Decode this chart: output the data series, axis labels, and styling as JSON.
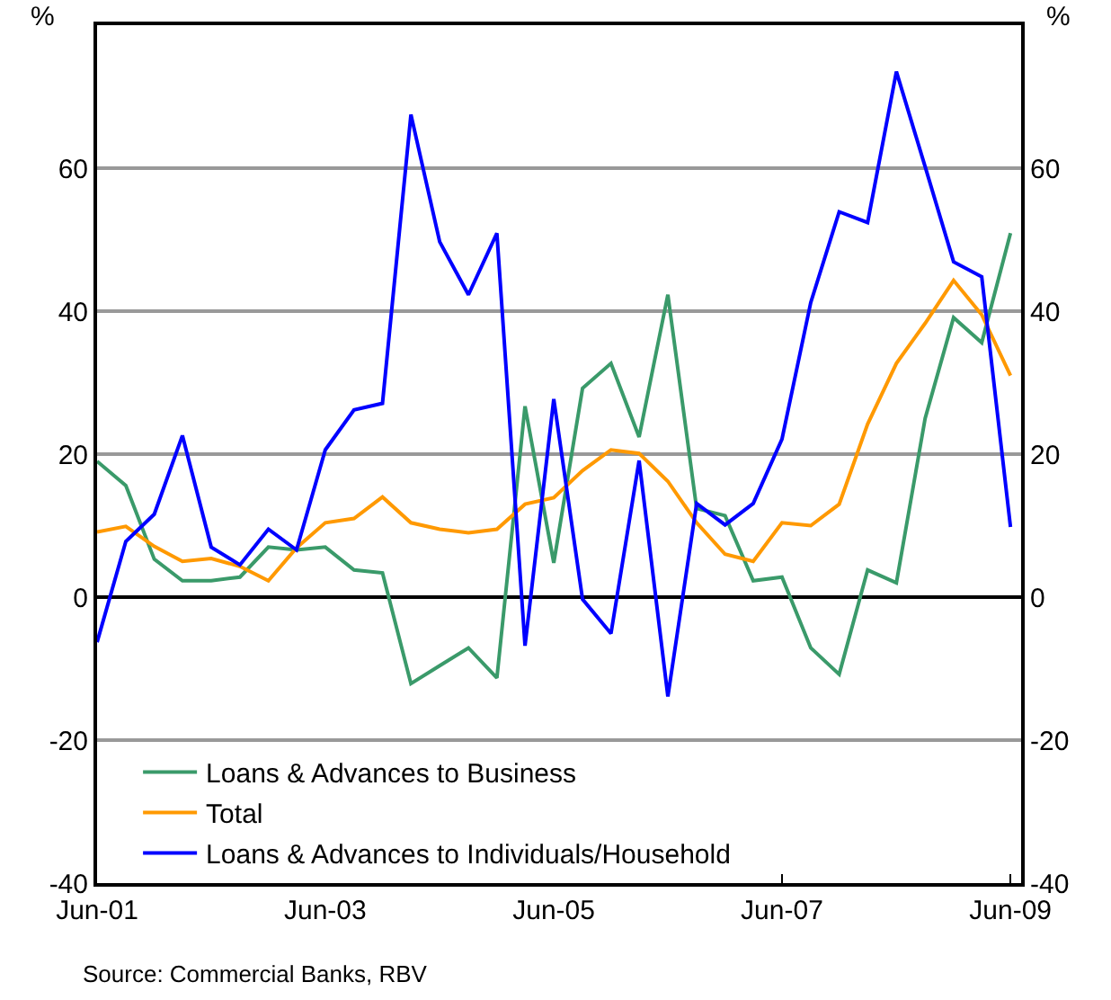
{
  "chart_data": {
    "type": "line",
    "ylabel": "%",
    "y2label": "%",
    "x": [
      "2001-06",
      "2001-09",
      "2001-12",
      "2002-03",
      "2002-06",
      "2002-09",
      "2002-12",
      "2003-03",
      "2003-06",
      "2003-09",
      "2003-12",
      "2004-03",
      "2004-06",
      "2004-09",
      "2004-12",
      "2005-03",
      "2005-06",
      "2005-09",
      "2005-12",
      "2006-03",
      "2006-06",
      "2006-09",
      "2006-12",
      "2007-03",
      "2007-06",
      "2007-09",
      "2007-12",
      "2008-03",
      "2008-06",
      "2008-09",
      "2008-12",
      "2009-03",
      "2009-06"
    ],
    "series": [
      {
        "name": "Loans & Advances to Business",
        "color": "#3a9a6a",
        "values": [
          19,
          15.6,
          5.3,
          2.3,
          2.3,
          2.8,
          7,
          6.6,
          7,
          3.8,
          3.4,
          -12.1,
          -9.6,
          -7.1,
          -11.3,
          26.7,
          4.8,
          29.2,
          32.7,
          22.4,
          42.3,
          12.4,
          11.4,
          2.3,
          2.8,
          -7.1,
          -10.8,
          3.8,
          2,
          25,
          39.1,
          35.6,
          50.9
        ]
      },
      {
        "name": "Total",
        "color": "#ff9900",
        "values": [
          9.1,
          9.9,
          7.1,
          5,
          5.4,
          4.3,
          2.3,
          6.9,
          10.4,
          11,
          14,
          10.4,
          9.5,
          9,
          9.5,
          13,
          13.9,
          17.7,
          20.6,
          20.1,
          16.2,
          10.4,
          6,
          5,
          10.4,
          10,
          13,
          24.2,
          32.7,
          38.3,
          44.3,
          39.5,
          31
        ]
      },
      {
        "name": "Loans & Advances to Individuals/Household",
        "color": "#0000ff",
        "values": [
          -6.3,
          7.8,
          11.6,
          22.6,
          7,
          4.5,
          9.5,
          6.6,
          20.6,
          26.2,
          27.1,
          67.5,
          49.7,
          42.3,
          50.9,
          -6.8,
          27.7,
          -0.3,
          -5.1,
          19.1,
          -13.9,
          13.1,
          10.1,
          13.1,
          22.1,
          41.2,
          53.9,
          52.4,
          73.5,
          60.2,
          46.9,
          44.8,
          9.8
        ]
      }
    ],
    "xlim": [
      "2001-06-01",
      "2009-07-05"
    ],
    "xticks": [
      {
        "value": "2001-06",
        "label": "Jun-01"
      },
      {
        "value": "2003-06",
        "label": "Jun-03"
      },
      {
        "value": "2005-06",
        "label": "Jun-05"
      },
      {
        "value": "2007-06",
        "label": "Jun-07"
      },
      {
        "value": "2009-06",
        "label": "Jun-09"
      }
    ],
    "ylim": [
      -40,
      80
    ],
    "yticks": [
      -40,
      -20,
      0,
      20,
      40,
      60
    ],
    "y2lim": [
      -40,
      80
    ],
    "y2ticks": [
      -40,
      -20,
      0,
      20,
      40,
      60
    ],
    "grid": "y",
    "legend": "bottom left",
    "marker": "none",
    "line_style": "solid",
    "annotations": [
      "Source: Commercial Banks, RBV"
    ]
  }
}
